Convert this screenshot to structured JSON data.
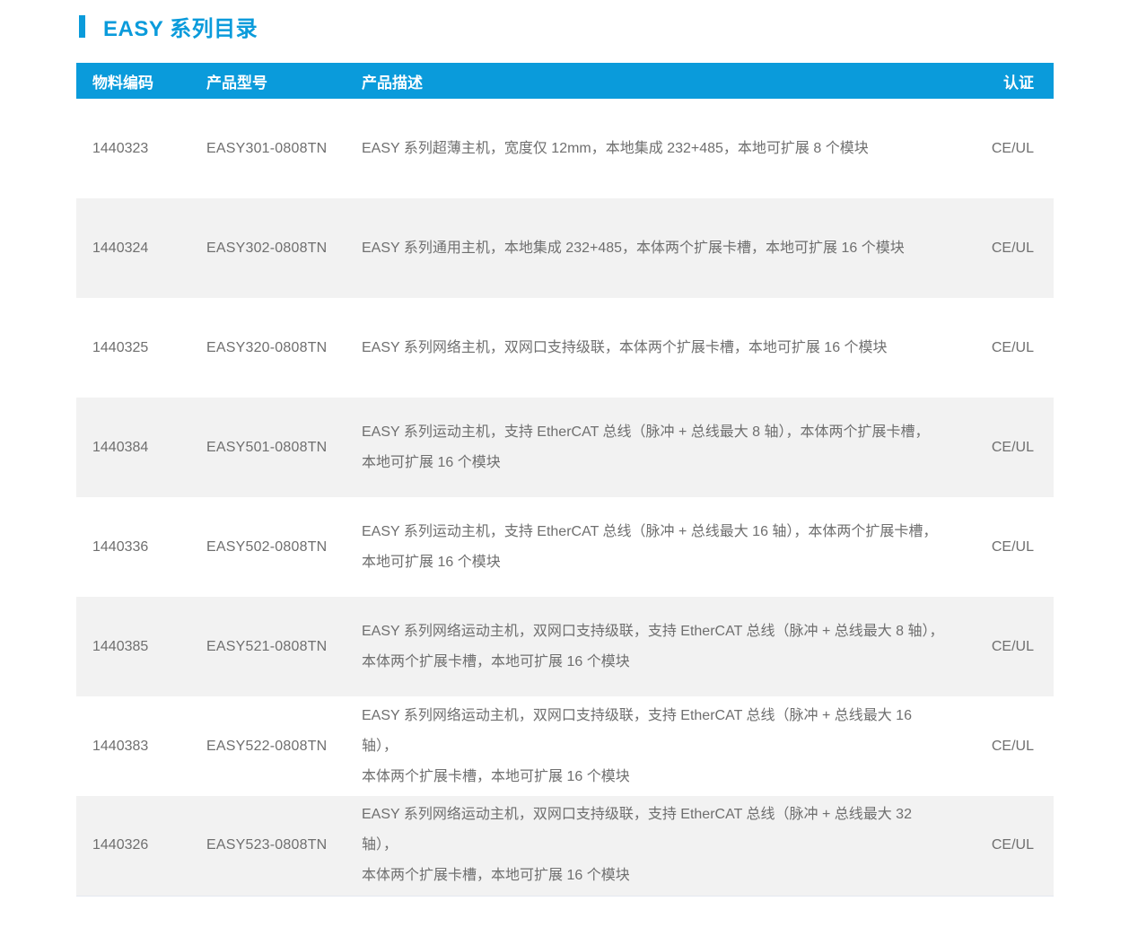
{
  "header": {
    "title": "EASY 系列目录"
  },
  "colors": {
    "accent_blue": "#0a9bdb",
    "row_alt_bg": "#f2f2f2",
    "body_text": "#6f6f6f",
    "header_text": "#ffffff"
  },
  "table": {
    "columns": {
      "code": "物料编码",
      "model": "产品型号",
      "desc": "产品描述",
      "cert": "认证"
    },
    "rows": [
      {
        "code": "1440323",
        "model": "EASY301-0808TN",
        "desc": "EASY 系列超薄主机，宽度仅 12mm，本地集成 232+485，本地可扩展 8 个模块",
        "cert": "CE/UL"
      },
      {
        "code": "1440324",
        "model": "EASY302-0808TN",
        "desc": "EASY 系列通用主机，本地集成 232+485，本体两个扩展卡槽，本地可扩展 16 个模块",
        "cert": "CE/UL"
      },
      {
        "code": "1440325",
        "model": "EASY320-0808TN",
        "desc": "EASY 系列网络主机，双网口支持级联，本体两个扩展卡槽，本地可扩展 16 个模块",
        "cert": "CE/UL"
      },
      {
        "code": "1440384",
        "model": "EASY501-0808TN",
        "desc": "EASY 系列运动主机，支持 EtherCAT 总线（脉冲 + 总线最大 8 轴），本体两个扩展卡槽，\n本地可扩展 16 个模块",
        "cert": "CE/UL"
      },
      {
        "code": "1440336",
        "model": "EASY502-0808TN",
        "desc": "EASY 系列运动主机，支持 EtherCAT 总线（脉冲 + 总线最大 16 轴），本体两个扩展卡槽，\n本地可扩展 16 个模块",
        "cert": "CE/UL"
      },
      {
        "code": "1440385",
        "model": "EASY521-0808TN",
        "desc": "EASY 系列网络运动主机，双网口支持级联，支持 EtherCAT 总线（脉冲 + 总线最大 8 轴），\n本体两个扩展卡槽，本地可扩展 16 个模块",
        "cert": "CE/UL"
      },
      {
        "code": "1440383",
        "model": "EASY522-0808TN",
        "desc": "EASY 系列网络运动主机，双网口支持级联，支持 EtherCAT 总线（脉冲 + 总线最大 16 轴），\n本体两个扩展卡槽，本地可扩展 16 个模块",
        "cert": "CE/UL"
      },
      {
        "code": "1440326",
        "model": "EASY523-0808TN",
        "desc": "EASY 系列网络运动主机，双网口支持级联，支持 EtherCAT 总线（脉冲 + 总线最大 32 轴），\n本体两个扩展卡槽，本地可扩展 16 个模块",
        "cert": "CE/UL"
      }
    ]
  }
}
